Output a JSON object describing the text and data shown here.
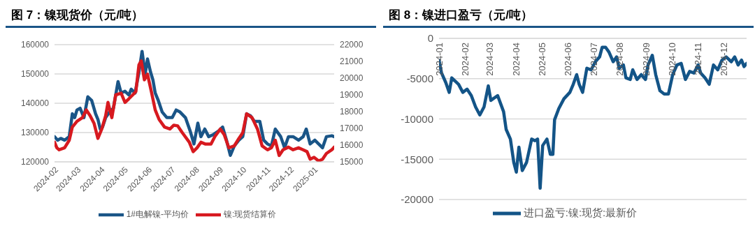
{
  "chart_data": [
    {
      "type": "line",
      "title": "图 7：镍现货价（元/吨）",
      "legend": "bottom",
      "grid": "y",
      "marker": "none",
      "line_style": "solid",
      "xlim": [
        "2024-02-01",
        "2025-01-27"
      ],
      "xticks": [
        {
          "value": "2024-02-01",
          "label": "2024-02"
        },
        {
          "value": "2024-03-01",
          "label": "2024-03"
        },
        {
          "value": "2024-04-01",
          "label": "2024-04"
        },
        {
          "value": "2024-05-01",
          "label": "2024-05"
        },
        {
          "value": "2024-06-01",
          "label": "2024-06"
        },
        {
          "value": "2024-07-01",
          "label": "2024-07"
        },
        {
          "value": "2024-08-01",
          "label": "2024-08"
        },
        {
          "value": "2024-09-01",
          "label": "2024-09"
        },
        {
          "value": "2024-10-01",
          "label": "2024-10"
        },
        {
          "value": "2024-11-01",
          "label": "2024-11"
        },
        {
          "value": "2024-12-01",
          "label": "2024-12"
        },
        {
          "value": "2025-01-01",
          "label": "2025-01"
        }
      ],
      "ylim": [
        120000,
        160000
      ],
      "yticks": [
        120000,
        130000,
        140000,
        150000,
        160000
      ],
      "y2lim": [
        15000,
        22000
      ],
      "y2ticks": [
        15000,
        16000,
        17000,
        18000,
        19000,
        20000,
        21000,
        22000
      ],
      "series": [
        {
          "name": "1#电解镍-平均价",
          "color": "#1a5587",
          "x": [
            "2024-02-01",
            "2024-02-05",
            "2024-02-09",
            "2024-02-14",
            "2024-02-20",
            "2024-02-24",
            "2024-02-27",
            "2024-03-01",
            "2024-03-05",
            "2024-03-10",
            "2024-03-15",
            "2024-03-20",
            "2024-03-25",
            "2024-03-28",
            "2024-03-31",
            "2024-04-03",
            "2024-04-07",
            "2024-04-12",
            "2024-04-17",
            "2024-04-23",
            "2024-04-27",
            "2024-05-02",
            "2024-05-07",
            "2024-05-10",
            "2024-05-15",
            "2024-05-20",
            "2024-05-24",
            "2024-05-28",
            "2024-05-31",
            "2024-06-04",
            "2024-06-07",
            "2024-06-10",
            "2024-06-14",
            "2024-06-19",
            "2024-06-25",
            "2024-07-02",
            "2024-07-07",
            "2024-07-12",
            "2024-07-19",
            "2024-07-25",
            "2024-07-30",
            "2024-08-04",
            "2024-08-08",
            "2024-08-13",
            "2024-08-18",
            "2024-08-24",
            "2024-08-31",
            "2024-09-05",
            "2024-09-10",
            "2024-09-15",
            "2024-09-20",
            "2024-09-26",
            "2024-10-01",
            "2024-10-06",
            "2024-10-11",
            "2024-10-16",
            "2024-10-23",
            "2024-10-28",
            "2024-11-02",
            "2024-11-07",
            "2024-11-12",
            "2024-11-19",
            "2024-11-24",
            "2024-11-29",
            "2024-12-05",
            "2024-12-12",
            "2024-12-18",
            "2024-12-22",
            "2024-12-27",
            "2025-01-02",
            "2025-01-07",
            "2025-01-12",
            "2025-01-17",
            "2025-01-24",
            "2025-01-27"
          ],
          "values": [
            128600,
            127400,
            128000,
            127400,
            128600,
            136400,
            135100,
            137700,
            138300,
            135100,
            142200,
            140900,
            136400,
            134500,
            131200,
            131900,
            135100,
            137000,
            138300,
            147400,
            143500,
            144100,
            142800,
            144800,
            143500,
            150600,
            157700,
            149900,
            155100,
            150600,
            148000,
            143500,
            140900,
            137000,
            135100,
            135100,
            137700,
            137000,
            135100,
            130600,
            126100,
            133200,
            128600,
            131200,
            128600,
            129300,
            130600,
            131900,
            127400,
            122200,
            125400,
            127400,
            128600,
            136400,
            135700,
            133800,
            133800,
            127400,
            126100,
            125400,
            131200,
            128600,
            124800,
            128600,
            128600,
            127400,
            128600,
            131200,
            126100,
            127400,
            126100,
            124800,
            128600,
            128900,
            128600
          ]
        },
        {
          "name": "镍:现货结算价",
          "color": "#d7191f",
          "axis": "y2",
          "x": [
            "2024-02-01",
            "2024-02-04",
            "2024-02-07",
            "2024-02-14",
            "2024-02-20",
            "2024-02-24",
            "2024-03-01",
            "2024-03-08",
            "2024-03-13",
            "2024-03-18",
            "2024-03-23",
            "2024-03-28",
            "2024-04-02",
            "2024-04-07",
            "2024-04-10",
            "2024-04-15",
            "2024-04-20",
            "2024-04-27",
            "2024-05-02",
            "2024-05-07",
            "2024-05-12",
            "2024-05-16",
            "2024-05-20",
            "2024-05-23",
            "2024-05-27",
            "2024-05-31",
            "2024-06-05",
            "2024-06-10",
            "2024-06-15",
            "2024-06-22",
            "2024-06-29",
            "2024-07-04",
            "2024-07-09",
            "2024-07-15",
            "2024-07-24",
            "2024-07-29",
            "2024-08-03",
            "2024-08-08",
            "2024-08-14",
            "2024-08-21",
            "2024-08-26",
            "2024-09-02",
            "2024-09-07",
            "2024-09-13",
            "2024-09-20",
            "2024-09-26",
            "2024-10-01",
            "2024-10-06",
            "2024-10-13",
            "2024-10-20",
            "2024-10-26",
            "2024-11-02",
            "2024-11-07",
            "2024-11-12",
            "2024-11-17",
            "2024-11-22",
            "2024-11-29",
            "2024-12-05",
            "2024-12-12",
            "2024-12-18",
            "2024-12-23",
            "2024-12-27",
            "2025-01-01",
            "2025-01-07",
            "2025-01-12",
            "2025-01-17",
            "2025-01-24",
            "2025-01-27"
          ],
          "values": [
            16170,
            15840,
            15720,
            15840,
            16290,
            17080,
            17420,
            17640,
            18100,
            17750,
            17300,
            16400,
            16960,
            17750,
            18550,
            17640,
            19000,
            19100,
            18550,
            18770,
            19000,
            19200,
            20800,
            21030,
            19900,
            20240,
            19200,
            18100,
            17530,
            17080,
            16960,
            17190,
            17150,
            16740,
            16170,
            15610,
            15840,
            16170,
            16060,
            16060,
            16510,
            16960,
            16630,
            15840,
            15950,
            16400,
            16740,
            17870,
            17640,
            16960,
            15950,
            15720,
            15840,
            16290,
            15380,
            15720,
            15880,
            15720,
            15840,
            15720,
            15610,
            15160,
            15270,
            15050,
            15160,
            15500,
            15720,
            15880
          ]
        }
      ]
    },
    {
      "type": "line",
      "title": "图 8：镍进口盈亏（元/吨）",
      "legend": "bottom",
      "grid": "y",
      "marker": "none",
      "line_style": "solid",
      "xlim": [
        "2024-01-01",
        "2024-12-28"
      ],
      "xticks": [
        {
          "value": "2024-01-01",
          "label": "2024-01"
        },
        {
          "value": "2024-02-01",
          "label": "2024-02"
        },
        {
          "value": "2024-03-01",
          "label": "2024-03"
        },
        {
          "value": "2024-04-01",
          "label": "2024-04"
        },
        {
          "value": "2024-05-01",
          "label": "2024-05"
        },
        {
          "value": "2024-06-01",
          "label": "2024-06"
        },
        {
          "value": "2024-07-01",
          "label": "2024-07"
        },
        {
          "value": "2024-08-01",
          "label": "2024-08"
        },
        {
          "value": "2024-09-01",
          "label": "2024-09"
        },
        {
          "value": "2024-10-01",
          "label": "2024-10"
        },
        {
          "value": "2024-11-01",
          "label": "2024-11"
        },
        {
          "value": "2024-12-01",
          "label": "2024-12"
        }
      ],
      "ylim": [
        -20000,
        0
      ],
      "yticks": [
        -20000,
        -15000,
        -10000,
        -5000,
        0
      ],
      "series": [
        {
          "name": "进口盈亏:镍:现货:最新价",
          "color": "#135487",
          "x": [
            "2024-01-01",
            "2024-01-04",
            "2024-01-09",
            "2024-01-13",
            "2024-01-16",
            "2024-01-24",
            "2024-01-29",
            "2024-02-03",
            "2024-02-08",
            "2024-02-13",
            "2024-02-18",
            "2024-02-23",
            "2024-02-28",
            "2024-03-02",
            "2024-03-10",
            "2024-03-17",
            "2024-03-20",
            "2024-03-25",
            "2024-03-29",
            "2024-04-01",
            "2024-04-04",
            "2024-04-08",
            "2024-04-13",
            "2024-04-19",
            "2024-04-23",
            "2024-04-26",
            "2024-04-29",
            "2024-05-02",
            "2024-05-07",
            "2024-05-11",
            "2024-05-14",
            "2024-05-16",
            "2024-05-21",
            "2024-05-27",
            "2024-06-03",
            "2024-06-07",
            "2024-06-11",
            "2024-06-14",
            "2024-06-18",
            "2024-06-23",
            "2024-06-28",
            "2024-07-03",
            "2024-07-08",
            "2024-07-11",
            "2024-07-15",
            "2024-07-19",
            "2024-07-24",
            "2024-07-28",
            "2024-07-31",
            "2024-08-05",
            "2024-08-08",
            "2024-08-13",
            "2024-08-16",
            "2024-08-21",
            "2024-08-26",
            "2024-08-31",
            "2024-09-03",
            "2024-09-08",
            "2024-09-12",
            "2024-09-17",
            "2024-09-22",
            "2024-09-27",
            "2024-10-02",
            "2024-10-07",
            "2024-10-12",
            "2024-10-17",
            "2024-10-22",
            "2024-10-27",
            "2024-11-01",
            "2024-11-04",
            "2024-11-09",
            "2024-11-14",
            "2024-11-19",
            "2024-11-24",
            "2024-11-29",
            "2024-12-04",
            "2024-12-10",
            "2024-12-14",
            "2024-12-18",
            "2024-12-22",
            "2024-12-25",
            "2024-12-28"
          ],
          "values": [
            -2700,
            -4300,
            -5500,
            -6700,
            -4900,
            -5700,
            -6700,
            -6300,
            -7100,
            -8500,
            -9500,
            -8500,
            -5900,
            -7700,
            -7100,
            -9100,
            -11300,
            -12500,
            -15400,
            -16600,
            -13500,
            -16400,
            -15400,
            -12500,
            -12700,
            -12500,
            -18600,
            -13300,
            -12500,
            -14400,
            -14400,
            -10100,
            -8700,
            -7500,
            -6700,
            -5700,
            -4500,
            -5700,
            -6700,
            -3700,
            -3900,
            -2900,
            -2300,
            -1100,
            -1100,
            -1700,
            -2900,
            -2300,
            -3700,
            -3300,
            -4900,
            -5100,
            -3900,
            -5100,
            -4500,
            -5100,
            -3300,
            -2100,
            -4500,
            -6500,
            -6900,
            -6900,
            -4500,
            -3300,
            -3100,
            -5100,
            -4100,
            -4300,
            -3300,
            -4300,
            -4900,
            -5700,
            -3300,
            -3900,
            -2700,
            -2300,
            -2900,
            -2300,
            -3300,
            -2700,
            -3500,
            -3100
          ]
        }
      ]
    }
  ]
}
